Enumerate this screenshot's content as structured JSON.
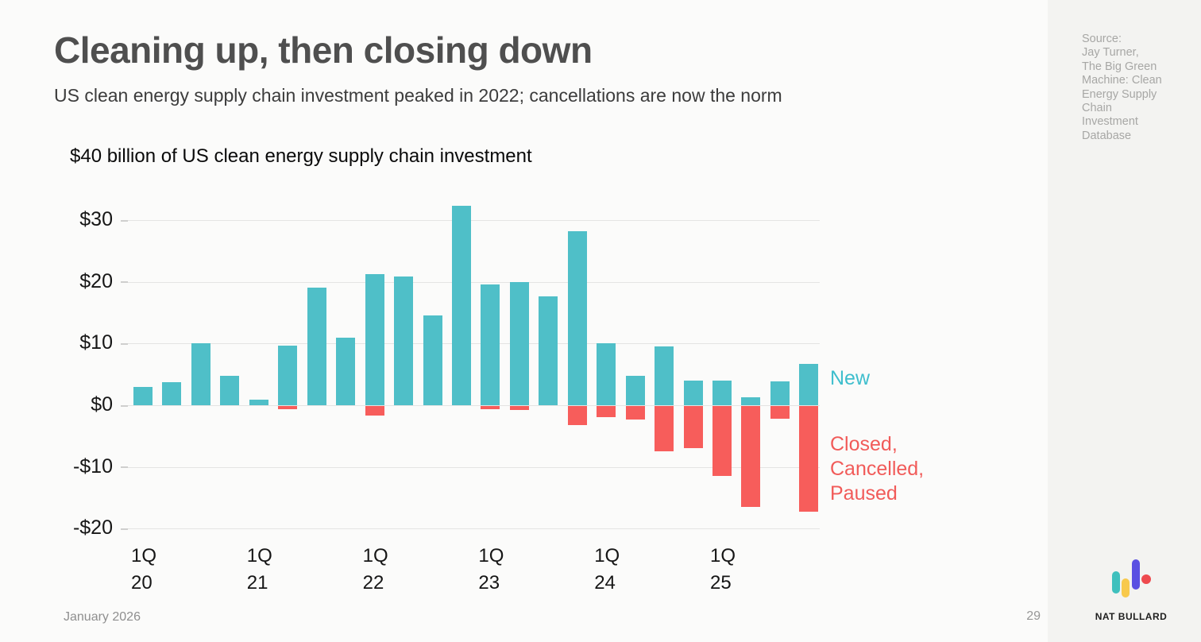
{
  "slide": {
    "title": "Cleaning up, then closing down",
    "subtitle": "US clean energy supply chain investment peaked in 2022; cancellations are now the norm",
    "date": "January 2026",
    "page_number": "29"
  },
  "source_panel": {
    "lines": [
      "Source:",
      "Jay Turner,",
      "The Big Green",
      "Machine: Clean",
      "Energy Supply",
      "Chain",
      "Investment",
      "Database"
    ]
  },
  "brand": {
    "name": "NAT BULLARD",
    "logo_colors": {
      "teal": "#3FC0BD",
      "yellow": "#F8C94C",
      "purple": "#5A50E2",
      "red": "#EE4A4E"
    }
  },
  "chart_data": {
    "type": "bar",
    "title": "$40 billion of US clean energy supply chain investment",
    "unit": "billion USD per quarter",
    "categories": [
      "1Q20",
      "2Q20",
      "3Q20",
      "4Q20",
      "1Q21",
      "2Q21",
      "3Q21",
      "4Q21",
      "1Q22",
      "2Q22",
      "3Q22",
      "4Q22",
      "1Q23",
      "2Q23",
      "3Q23",
      "4Q23",
      "1Q24",
      "2Q24",
      "3Q24",
      "4Q24",
      "1Q25",
      "2Q25",
      "3Q25",
      "4Q25"
    ],
    "series": [
      {
        "name": "New",
        "color": "#4FBFC8",
        "values": [
          2.9,
          3.8,
          10.0,
          4.8,
          0.9,
          9.7,
          19.1,
          10.9,
          21.3,
          20.9,
          14.6,
          32.4,
          19.6,
          20.0,
          17.7,
          28.2,
          10.0,
          4.8,
          9.6,
          4.0,
          4.0,
          1.3,
          3.9,
          6.7
        ]
      },
      {
        "name": "Closed, Cancelled, Paused",
        "color": "#F75D5B",
        "values": [
          0,
          0,
          0,
          0,
          0,
          -0.5,
          0,
          0,
          -1.6,
          0,
          0,
          0,
          -0.5,
          -0.6,
          0,
          -3.1,
          -1.8,
          -2.2,
          -7.3,
          -6.8,
          -11.4,
          -16.4,
          -2.1,
          -17.1
        ]
      }
    ],
    "ylim": [
      -20,
      34
    ],
    "grid": true,
    "legend_position": "right",
    "yticks": [
      {
        "value": 30,
        "label": "$30"
      },
      {
        "value": 20,
        "label": "$20"
      },
      {
        "value": 10,
        "label": "$10"
      },
      {
        "value": 0,
        "label": "$0"
      },
      {
        "value": -10,
        "label": "-$10"
      },
      {
        "value": -20,
        "label": "-$20"
      }
    ],
    "xticks": [
      {
        "index": 0,
        "lines": [
          "1Q",
          "20"
        ]
      },
      {
        "index": 4,
        "lines": [
          "1Q",
          "21"
        ]
      },
      {
        "index": 8,
        "lines": [
          "1Q",
          "22"
        ]
      },
      {
        "index": 12,
        "lines": [
          "1Q",
          "23"
        ]
      },
      {
        "index": 16,
        "lines": [
          "1Q",
          "24"
        ]
      },
      {
        "index": 20,
        "lines": [
          "1Q",
          "25"
        ]
      }
    ],
    "legend": [
      {
        "name": "New",
        "color": "#3EBECD",
        "lines": [
          "New"
        ]
      },
      {
        "name": "Closed, Cancelled, Paused",
        "color": "#F15B59",
        "lines": [
          "Closed,",
          "Cancelled,",
          "Paused"
        ]
      }
    ]
  }
}
